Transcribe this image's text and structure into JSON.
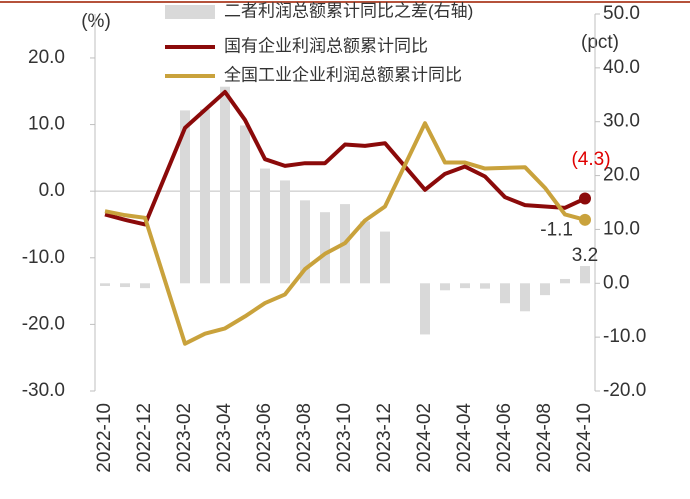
{
  "chart_data": {
    "type": "bar-line",
    "y_label": "(%)",
    "y2_label": "(pct)",
    "categories": [
      "2022-10",
      null,
      "2022-12",
      null,
      "2023-02",
      null,
      "2023-04",
      null,
      "2023-06",
      null,
      "2023-08",
      null,
      "2023-10",
      null,
      "2023-12",
      null,
      "2024-02",
      null,
      "2024-04",
      null,
      "2024-06",
      null,
      "2024-08",
      null,
      "2024-10"
    ],
    "series": [
      {
        "name": "二者利润总额累计同比之差(右轴)",
        "type": "bar",
        "axis": "y2",
        "color": "#d9d9d9",
        "values": [
          -0.5,
          -0.7,
          -0.9,
          null,
          32.1,
          32.3,
          36.5,
          29.3,
          21.3,
          19.1,
          15.4,
          13.2,
          14.7,
          11.5,
          9.6,
          null,
          -9.5,
          -1.3,
          -0.9,
          -1.0,
          -3.7,
          -5.2,
          -2.2,
          0.8,
          3.2
        ],
        "value_labels": [
          null,
          null,
          null,
          null,
          null,
          null,
          null,
          null,
          null,
          null,
          null,
          null,
          null,
          null,
          null,
          null,
          null,
          null,
          null,
          null,
          null,
          null,
          null,
          null,
          "3.2"
        ]
      },
      {
        "name": "国有企业利润总额累计同比",
        "type": "line",
        "color": "#8b0a0a",
        "values": [
          -3.5,
          -4.3,
          -5.0,
          null,
          9.5,
          12.2,
          14.9,
          10.7,
          4.8,
          3.8,
          4.2,
          4.2,
          7.0,
          6.8,
          7.2,
          null,
          0.2,
          2.6,
          3.7,
          2.2,
          -0.9,
          -2.1,
          -2.3,
          -2.5,
          -1.1
        ],
        "value_labels": [
          null,
          null,
          null,
          null,
          null,
          null,
          null,
          null,
          null,
          null,
          null,
          null,
          null,
          null,
          null,
          null,
          null,
          null,
          null,
          null,
          null,
          null,
          null,
          null,
          "-1.1"
        ]
      },
      {
        "name": "全国工业企业利润总额累计同比",
        "type": "line",
        "color": "#c9a23c",
        "values": [
          -3.0,
          -3.6,
          -4.0,
          null,
          -22.9,
          -21.4,
          -20.6,
          -18.8,
          -16.8,
          -15.5,
          -11.7,
          -9.4,
          -7.8,
          -4.4,
          -2.3,
          null,
          10.2,
          4.3,
          4.3,
          3.4,
          3.5,
          3.6,
          0.5,
          -3.5,
          -4.3
        ],
        "value_labels": [
          null,
          null,
          null,
          null,
          null,
          null,
          null,
          null,
          null,
          null,
          null,
          null,
          null,
          null,
          null,
          null,
          null,
          null,
          null,
          null,
          null,
          null,
          null,
          null,
          "(4.3)"
        ]
      }
    ],
    "ylim": [
      -30,
      26.6
    ],
    "yticks": [
      {
        "value": -30,
        "label": "-30.0"
      },
      {
        "value": -20,
        "label": "-20.0"
      },
      {
        "value": -10,
        "label": "-10.0"
      },
      {
        "value": 0,
        "label": "0.0"
      },
      {
        "value": 10,
        "label": "10.0"
      },
      {
        "value": 20,
        "label": "20.0"
      }
    ],
    "y2lim": [
      -20,
      50
    ],
    "y2ticks": [
      {
        "value": -20,
        "label": "-20.0"
      },
      {
        "value": -10,
        "label": "-10.0"
      },
      {
        "value": 0,
        "label": "0.0"
      },
      {
        "value": 10,
        "label": "10.0"
      },
      {
        "value": 20,
        "label": "20.0"
      },
      {
        "value": 30,
        "label": "30.0"
      },
      {
        "value": 40,
        "label": "40.0"
      },
      {
        "value": 50,
        "label": "50.0"
      }
    ]
  }
}
